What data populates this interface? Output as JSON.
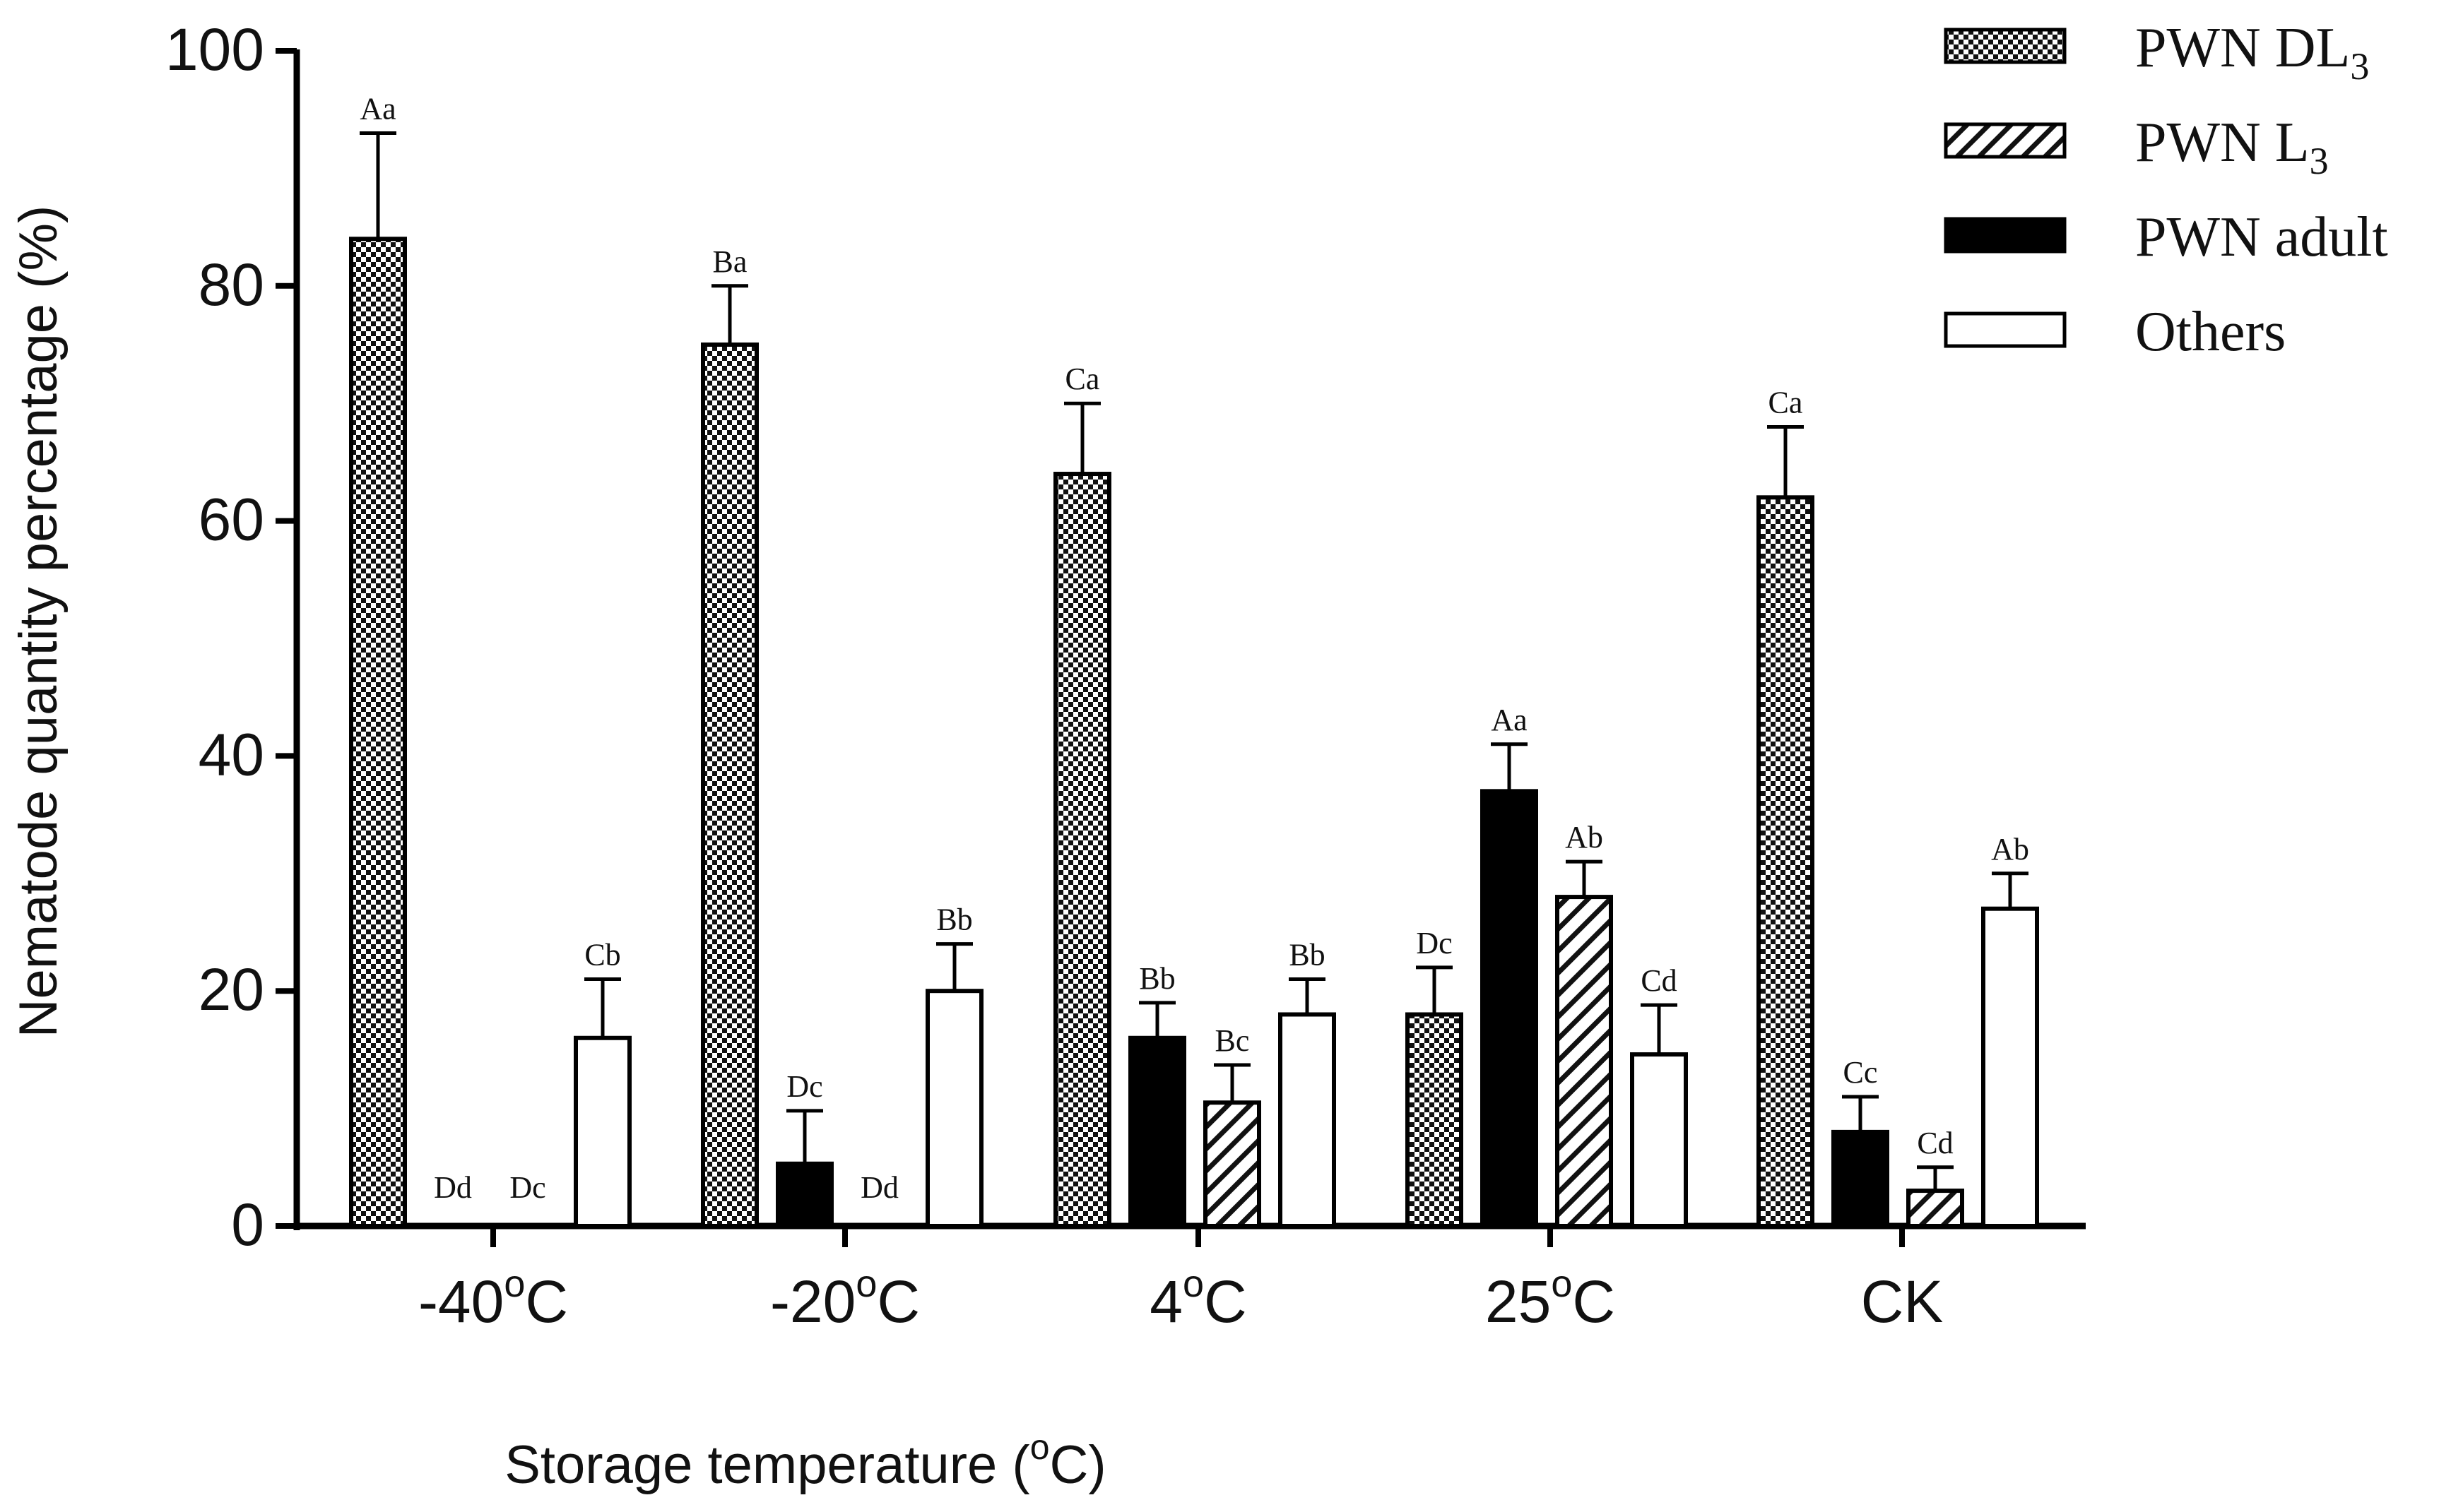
{
  "chart_data": {
    "type": "bar",
    "title": "",
    "ylabel": "Nematode quantity percentage (%)",
    "xlabel": {
      "main": "Storage temperature (",
      "sup": "o",
      "tail": "C)"
    },
    "ylim": [
      0,
      100
    ],
    "yticks": [
      "0",
      "20",
      "40",
      "60",
      "80",
      "100"
    ],
    "grid": false,
    "legend_position": "top-right",
    "categories": [
      {
        "pre": "-40",
        "sup": "o",
        "post": "C"
      },
      {
        "pre": "-20",
        "sup": "o",
        "post": "C"
      },
      {
        "pre": "4",
        "sup": "o",
        "post": "C"
      },
      {
        "pre": "25",
        "sup": "o",
        "post": "C"
      },
      {
        "pre": "CK",
        "sup": "",
        "post": ""
      }
    ],
    "series": [
      {
        "name": "PWN DL",
        "sub": "3",
        "pattern": "checker",
        "values": [
          84,
          75,
          64,
          18,
          62
        ],
        "errors": [
          9,
          5,
          6,
          4,
          6
        ],
        "labels": [
          "Aa",
          "Ba",
          "Ca",
          "Dc",
          "Ca"
        ]
      },
      {
        "name": "PWN adult",
        "sub": "",
        "pattern": "solid",
        "values": [
          0,
          5.3,
          16,
          37,
          8
        ],
        "errors": [
          0,
          4.5,
          3,
          4,
          3
        ],
        "labels": [
          "Dd",
          "Dc",
          "Bb",
          "Aa",
          "Cc"
        ]
      },
      {
        "name": "PWN L",
        "sub": "3",
        "pattern": "hatch",
        "values": [
          0,
          0,
          10.5,
          28,
          3
        ],
        "errors": [
          0,
          0,
          3.2,
          3,
          2
        ],
        "labels": [
          "Dc",
          "Dd",
          "Bc",
          "Ab",
          "Cd"
        ]
      },
      {
        "name": "Others",
        "sub": "",
        "pattern": "open",
        "values": [
          16,
          20,
          18,
          14.6,
          27
        ],
        "errors": [
          5,
          4,
          3,
          4.2,
          3
        ],
        "labels": [
          "Cb",
          "Bb",
          "Bb",
          "Cd",
          "Ab"
        ]
      }
    ],
    "legend_order": [
      0,
      2,
      1,
      3
    ]
  }
}
